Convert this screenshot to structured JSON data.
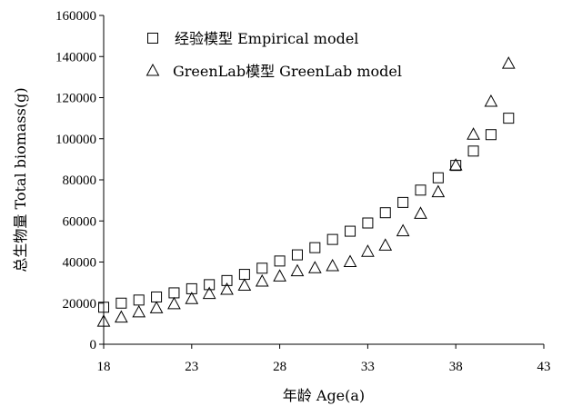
{
  "chart_data": {
    "type": "scatter",
    "title": "",
    "xlabel": "年龄 Age(a)",
    "ylabel": "总生物量 Total biomass(g)",
    "xlim": [
      18,
      43
    ],
    "ylim": [
      0,
      160000
    ],
    "xticks": [
      18,
      23,
      28,
      33,
      38,
      43
    ],
    "yticks": [
      0,
      20000,
      40000,
      60000,
      80000,
      100000,
      120000,
      140000,
      160000
    ],
    "grid": false,
    "legend_position": "top-left",
    "series": [
      {
        "name": "经验模型 Empirical model",
        "marker": "square",
        "x": [
          18,
          19,
          20,
          21,
          22,
          23,
          24,
          25,
          26,
          27,
          28,
          29,
          30,
          31,
          32,
          33,
          34,
          35,
          36,
          37,
          38,
          39,
          40,
          41
        ],
        "y": [
          18000,
          20000,
          21500,
          23000,
          25000,
          27000,
          29000,
          31000,
          34000,
          37000,
          40500,
          43500,
          47000,
          51000,
          55000,
          59000,
          64000,
          69000,
          75000,
          81000,
          87000,
          94000,
          102000,
          110000
        ]
      },
      {
        "name": "GreenLab模型 GreenLab model",
        "marker": "triangle",
        "x": [
          18,
          19,
          20,
          21,
          22,
          23,
          24,
          25,
          26,
          27,
          28,
          29,
          30,
          31,
          32,
          33,
          34,
          35,
          36,
          37,
          38,
          39,
          40,
          41
        ],
        "y": [
          11000,
          13000,
          15500,
          17500,
          19500,
          22000,
          24500,
          26500,
          28500,
          30500,
          33000,
          35500,
          37000,
          38000,
          40000,
          45000,
          48000,
          55000,
          63500,
          74000,
          87000,
          102000,
          118000,
          136500
        ]
      }
    ]
  }
}
